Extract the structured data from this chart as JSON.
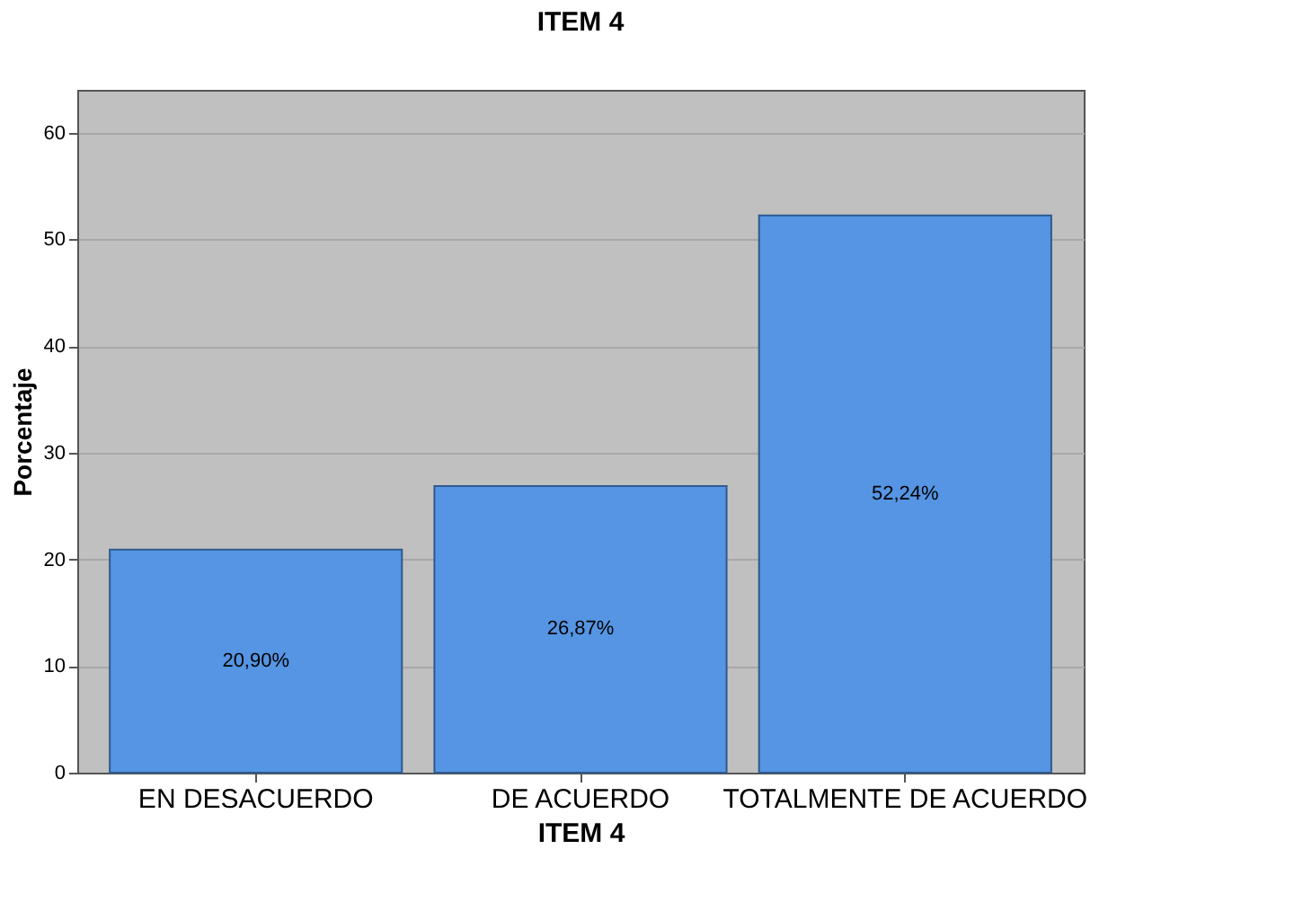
{
  "chart_data": {
    "type": "bar",
    "title": "ITEM 4",
    "xlabel": "ITEM 4",
    "ylabel": "Porcentaje",
    "categories": [
      "EN DESACUERDO",
      "DE ACUERDO",
      "TOTALMENTE DE ACUERDO"
    ],
    "values": [
      20.9,
      26.87,
      52.24
    ],
    "value_labels": [
      "20,90%",
      "26,87%",
      "52,24%"
    ],
    "color": "#5595e3",
    "ylim": [
      0,
      64
    ],
    "yticks": [
      0,
      10,
      20,
      30,
      40,
      50,
      60
    ],
    "grid": "y"
  }
}
